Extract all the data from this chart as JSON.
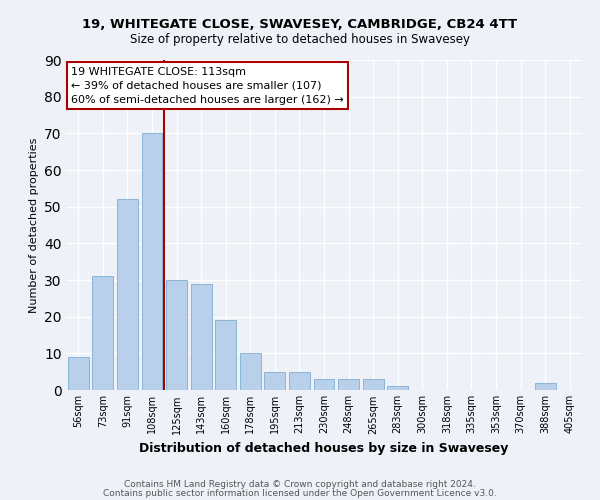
{
  "title": "19, WHITEGATE CLOSE, SWAVESEY, CAMBRIDGE, CB24 4TT",
  "subtitle": "Size of property relative to detached houses in Swavesey",
  "xlabel": "Distribution of detached houses by size in Swavesey",
  "ylabel": "Number of detached properties",
  "bar_labels": [
    "56sqm",
    "73sqm",
    "91sqm",
    "108sqm",
    "125sqm",
    "143sqm",
    "160sqm",
    "178sqm",
    "195sqm",
    "213sqm",
    "230sqm",
    "248sqm",
    "265sqm",
    "283sqm",
    "300sqm",
    "318sqm",
    "335sqm",
    "353sqm",
    "370sqm",
    "388sqm",
    "405sqm"
  ],
  "bar_values": [
    9,
    31,
    52,
    70,
    30,
    29,
    19,
    10,
    5,
    5,
    3,
    3,
    3,
    1,
    0,
    0,
    0,
    0,
    0,
    2,
    0
  ],
  "bar_color": "#b8d0ea",
  "bar_edgecolor": "#8ab4d8",
  "vline_color": "#aa0000",
  "vline_x": 3.5,
  "ylim": [
    0,
    90
  ],
  "yticks": [
    0,
    10,
    20,
    30,
    40,
    50,
    60,
    70,
    80,
    90
  ],
  "annotation_title": "19 WHITEGATE CLOSE: 113sqm",
  "annotation_line1": "← 39% of detached houses are smaller (107)",
  "annotation_line2": "60% of semi-detached houses are larger (162) →",
  "annotation_box_edgecolor": "#aa0000",
  "bg_color": "#eef2f8",
  "grid_color": "#ffffff",
  "footer_line1": "Contains HM Land Registry data © Crown copyright and database right 2024.",
  "footer_line2": "Contains public sector information licensed under the Open Government Licence v3.0.",
  "title_fontsize": 9.5,
  "subtitle_fontsize": 8.5,
  "xlabel_fontsize": 9,
  "ylabel_fontsize": 8,
  "tick_fontsize": 7,
  "annot_fontsize": 8,
  "footer_fontsize": 6.5
}
